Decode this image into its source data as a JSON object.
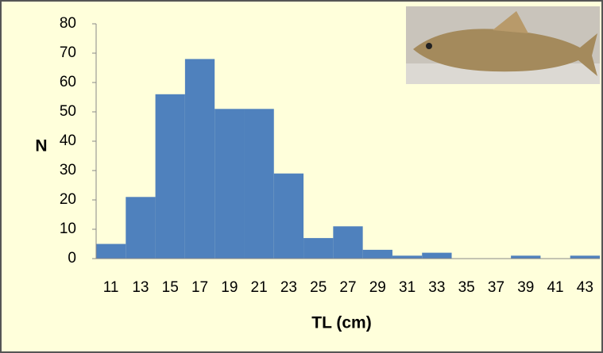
{
  "chart_data": {
    "type": "bar",
    "categories": [
      "11",
      "13",
      "15",
      "17",
      "19",
      "21",
      "23",
      "25",
      "27",
      "29",
      "31",
      "33",
      "35",
      "37",
      "39",
      "41",
      "43"
    ],
    "values": [
      5,
      21,
      56,
      68,
      51,
      51,
      29,
      7,
      11,
      3,
      1,
      2,
      0,
      0,
      1,
      0,
      1
    ],
    "color": "#4f81bd",
    "ylabel": "N",
    "xlabel": "TL (cm)",
    "ylim": [
      0,
      80
    ],
    "yticks": [
      0,
      10,
      20,
      30,
      40,
      50,
      60,
      70,
      80
    ]
  }
}
